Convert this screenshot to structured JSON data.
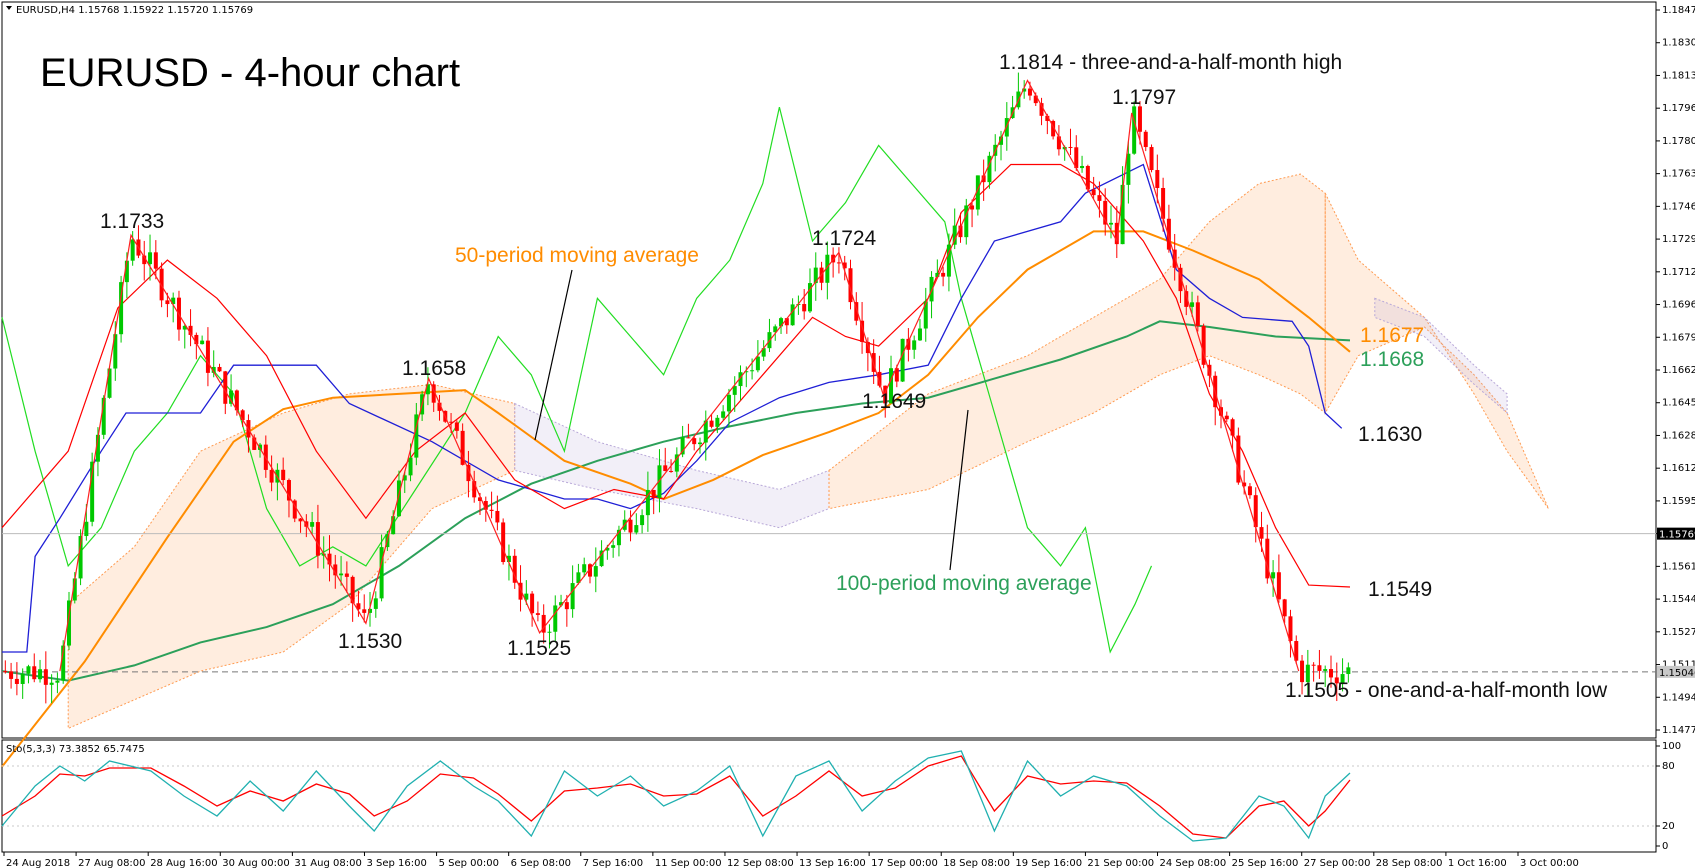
{
  "symbol_header": "EURUSD,H4  1.15768 1.15922 1.15720 1.15769",
  "title": "EURUSD - 4-hour chart",
  "osc_header": "Sto(5,3,3) 73.3852 65.7475",
  "current_price_label": "1.15769",
  "dashed_level_label": "1.15046",
  "chart_data": {
    "type": "candlestick",
    "price_axis": {
      "ylim": [
        1.147,
        1.1855
      ],
      "ticks": [
        "1.18470",
        "1.18305",
        "1.18135",
        "1.17965",
        "1.17800",
        "1.17630",
        "1.17465",
        "1.17295",
        "1.17125",
        "1.16960",
        "1.16790",
        "1.16620",
        "1.16455",
        "1.16285",
        "1.16120",
        "1.15950",
        "1.15780",
        "1.15610",
        "1.15445",
        "1.15275",
        "1.15110",
        "1.14940",
        "1.14775"
      ],
      "current_price": 1.15769,
      "dashed_level": 1.15046
    },
    "x_ticks": [
      "24 Aug 2018",
      "27 Aug 08:00",
      "28 Aug 16:00",
      "30 Aug 00:00",
      "31 Aug 08:00",
      "3 Sep 16:00",
      "5 Sep 00:00",
      "6 Sep 08:00",
      "7 Sep 16:00",
      "11 Sep 00:00",
      "12 Sep 08:00",
      "13 Sep 16:00",
      "17 Sep 00:00",
      "18 Sep 08:00",
      "19 Sep 16:00",
      "21 Sep 00:00",
      "24 Sep 08:00",
      "25 Sep 16:00",
      "27 Sep 00:00",
      "28 Sep 08:00",
      "1 Oct 16:00",
      "3 Oct 00:00"
    ],
    "osc_ticks": [
      "100",
      "80",
      "20",
      "0"
    ],
    "colors": {
      "up": "#00c800",
      "down": "#ff0000",
      "ma50": "#ff8c00",
      "ma100": "#2ca05a",
      "kijun": "#1f1fd6",
      "tenkan": "#ff0000",
      "chikou": "#22dd22",
      "cloud_orange": "#ff9a50",
      "cloud_purple": "#b8a8d8",
      "stoch_main": "#20b0b0",
      "stoch_signal": "#ff0000",
      "label_orange": "#ff8c00",
      "label_green": "#2ca05a"
    },
    "annotations": {
      "h1": "1.1733",
      "h2": "1.1658",
      "h3": "1.1724",
      "h4": "1.1814 - three-and-a-half-month high",
      "h5": "1.1797",
      "l1": "1.1530",
      "l2": "1.1525",
      "l3": "1.1649",
      "l4": "1.1505 - one-and-a-half-month low",
      "ma50_text": "50-period moving average",
      "ma100_text": "100-period moving average",
      "ma50_val": "1.1677",
      "ma100_val": "1.1668",
      "kijun_val": "1.1630",
      "last_val": "1.1549"
    },
    "zigzag": [
      {
        "x": 0.035,
        "y": 1.1505
      },
      {
        "x": 0.078,
        "y": 1.1733
      },
      {
        "x": 0.22,
        "y": 1.153
      },
      {
        "x": 0.258,
        "y": 1.1658
      },
      {
        "x": 0.325,
        "y": 1.1525
      },
      {
        "x": 0.506,
        "y": 1.1724
      },
      {
        "x": 0.533,
        "y": 1.1649
      },
      {
        "x": 0.62,
        "y": 1.1814
      },
      {
        "x": 0.674,
        "y": 1.173
      },
      {
        "x": 0.683,
        "y": 1.1797
      },
      {
        "x": 0.784,
        "y": 1.1505
      }
    ],
    "ma50": [
      [
        0,
        1.1455
      ],
      [
        0.05,
        1.151
      ],
      [
        0.1,
        1.1575
      ],
      [
        0.14,
        1.1625
      ],
      [
        0.17,
        1.1642
      ],
      [
        0.2,
        1.1648
      ],
      [
        0.24,
        1.165
      ],
      [
        0.28,
        1.1652
      ],
      [
        0.3,
        1.164
      ],
      [
        0.34,
        1.1615
      ],
      [
        0.38,
        1.1603
      ],
      [
        0.4,
        1.1595
      ],
      [
        0.43,
        1.1605
      ],
      [
        0.46,
        1.1618
      ],
      [
        0.5,
        1.163
      ],
      [
        0.53,
        1.164
      ],
      [
        0.56,
        1.166
      ],
      [
        0.59,
        1.169
      ],
      [
        0.62,
        1.1715
      ],
      [
        0.66,
        1.1735
      ],
      [
        0.69,
        1.1735
      ],
      [
        0.72,
        1.1725
      ],
      [
        0.76,
        1.171
      ],
      [
        0.79,
        1.169
      ],
      [
        0.815,
        1.1672
      ]
    ],
    "ma100": [
      [
        0,
        1.1505
      ],
      [
        0.04,
        1.15
      ],
      [
        0.08,
        1.1508
      ],
      [
        0.12,
        1.152
      ],
      [
        0.16,
        1.1528
      ],
      [
        0.2,
        1.154
      ],
      [
        0.24,
        1.156
      ],
      [
        0.28,
        1.1585
      ],
      [
        0.32,
        1.1603
      ],
      [
        0.36,
        1.1615
      ],
      [
        0.4,
        1.1625
      ],
      [
        0.44,
        1.1633
      ],
      [
        0.48,
        1.164
      ],
      [
        0.52,
        1.1645
      ],
      [
        0.56,
        1.1648
      ],
      [
        0.6,
        1.1658
      ],
      [
        0.64,
        1.1668
      ],
      [
        0.68,
        1.168
      ],
      [
        0.7,
        1.1688
      ],
      [
        0.73,
        1.1685
      ],
      [
        0.77,
        1.168
      ],
      [
        0.815,
        1.1678
      ]
    ],
    "kijun": [
      [
        0,
        1.1515
      ],
      [
        0.015,
        1.1515
      ],
      [
        0.02,
        1.1565
      ],
      [
        0.035,
        1.1585
      ],
      [
        0.06,
        1.162
      ],
      [
        0.075,
        1.164
      ],
      [
        0.12,
        1.164
      ],
      [
        0.14,
        1.1665
      ],
      [
        0.19,
        1.1665
      ],
      [
        0.21,
        1.1645
      ],
      [
        0.26,
        1.1625
      ],
      [
        0.3,
        1.1605
      ],
      [
        0.34,
        1.1595
      ],
      [
        0.36,
        1.1595
      ],
      [
        0.38,
        1.159
      ],
      [
        0.4,
        1.1598
      ],
      [
        0.42,
        1.1615
      ],
      [
        0.44,
        1.1635
      ],
      [
        0.47,
        1.1648
      ],
      [
        0.5,
        1.1656
      ],
      [
        0.53,
        1.166
      ],
      [
        0.56,
        1.1665
      ],
      [
        0.58,
        1.17
      ],
      [
        0.6,
        1.173
      ],
      [
        0.64,
        1.174
      ],
      [
        0.655,
        1.1755
      ],
      [
        0.69,
        1.177
      ],
      [
        0.71,
        1.1715
      ],
      [
        0.73,
        1.17
      ],
      [
        0.75,
        1.169
      ],
      [
        0.78,
        1.1688
      ],
      [
        0.79,
        1.1675
      ],
      [
        0.8,
        1.164
      ],
      [
        0.81,
        1.1632
      ]
    ],
    "tenkan": [
      [
        0,
        1.158
      ],
      [
        0.04,
        1.162
      ],
      [
        0.07,
        1.1695
      ],
      [
        0.1,
        1.172
      ],
      [
        0.13,
        1.17
      ],
      [
        0.16,
        1.167
      ],
      [
        0.19,
        1.162
      ],
      [
        0.22,
        1.1585
      ],
      [
        0.25,
        1.162
      ],
      [
        0.28,
        1.164
      ],
      [
        0.31,
        1.1605
      ],
      [
        0.34,
        1.159
      ],
      [
        0.37,
        1.16
      ],
      [
        0.4,
        1.1595
      ],
      [
        0.42,
        1.162
      ],
      [
        0.44,
        1.164
      ],
      [
        0.46,
        1.166
      ],
      [
        0.49,
        1.169
      ],
      [
        0.51,
        1.168
      ],
      [
        0.53,
        1.1675
      ],
      [
        0.56,
        1.17
      ],
      [
        0.58,
        1.1745
      ],
      [
        0.61,
        1.177
      ],
      [
        0.64,
        1.177
      ],
      [
        0.66,
        1.176
      ],
      [
        0.69,
        1.173
      ],
      [
        0.71,
        1.17
      ],
      [
        0.73,
        1.165
      ],
      [
        0.75,
        1.162
      ],
      [
        0.77,
        1.158
      ],
      [
        0.79,
        1.155
      ],
      [
        0.815,
        1.1549
      ]
    ],
    "chikou": [
      [
        0,
        1.169
      ],
      [
        0.02,
        1.162
      ],
      [
        0.04,
        1.156
      ],
      [
        0.06,
        1.158
      ],
      [
        0.08,
        1.162
      ],
      [
        0.1,
        1.164
      ],
      [
        0.12,
        1.167
      ],
      [
        0.14,
        1.165
      ],
      [
        0.16,
        1.159
      ],
      [
        0.18,
        1.156
      ],
      [
        0.2,
        1.157
      ],
      [
        0.22,
        1.156
      ],
      [
        0.25,
        1.16
      ],
      [
        0.28,
        1.164
      ],
      [
        0.3,
        1.168
      ],
      [
        0.32,
        1.166
      ],
      [
        0.34,
        1.162
      ],
      [
        0.36,
        1.17
      ],
      [
        0.38,
        1.168
      ],
      [
        0.4,
        1.166
      ],
      [
        0.42,
        1.17
      ],
      [
        0.44,
        1.172
      ],
      [
        0.46,
        1.176
      ],
      [
        0.47,
        1.18
      ],
      [
        0.49,
        1.173
      ],
      [
        0.51,
        1.175
      ],
      [
        0.53,
        1.178
      ],
      [
        0.55,
        1.176
      ],
      [
        0.57,
        1.174
      ],
      [
        0.58,
        1.17
      ],
      [
        0.6,
        1.164
      ],
      [
        0.62,
        1.158
      ],
      [
        0.64,
        1.156
      ],
      [
        0.655,
        1.158
      ],
      [
        0.67,
        1.1515
      ],
      [
        0.685,
        1.154
      ],
      [
        0.695,
        1.156
      ]
    ],
    "cloud": [
      {
        "color": "orange",
        "top": [
          [
            0.04,
            1.154
          ],
          [
            0.08,
            1.157
          ],
          [
            0.12,
            1.162
          ],
          [
            0.17,
            1.164
          ],
          [
            0.21,
            1.165
          ],
          [
            0.26,
            1.1655
          ],
          [
            0.31,
            1.1645
          ]
        ],
        "bottom": [
          [
            0.04,
            1.1475
          ],
          [
            0.08,
            1.149
          ],
          [
            0.12,
            1.1505
          ],
          [
            0.17,
            1.1515
          ],
          [
            0.21,
            1.154
          ],
          [
            0.26,
            1.159
          ],
          [
            0.31,
            1.161
          ]
        ]
      },
      {
        "color": "purple",
        "top": [
          [
            0.31,
            1.1645
          ],
          [
            0.36,
            1.1625
          ],
          [
            0.42,
            1.161
          ],
          [
            0.47,
            1.16
          ],
          [
            0.5,
            1.161
          ]
        ],
        "bottom": [
          [
            0.31,
            1.161
          ],
          [
            0.36,
            1.16
          ],
          [
            0.42,
            1.159
          ],
          [
            0.47,
            1.158
          ],
          [
            0.5,
            1.159
          ]
        ]
      },
      {
        "color": "orange",
        "top": [
          [
            0.5,
            1.161
          ],
          [
            0.56,
            1.165
          ],
          [
            0.62,
            1.167
          ],
          [
            0.66,
            1.169
          ],
          [
            0.7,
            1.171
          ],
          [
            0.73,
            1.174
          ],
          [
            0.76,
            1.176
          ],
          [
            0.785,
            1.1765
          ],
          [
            0.8,
            1.1755
          ]
        ],
        "bottom": [
          [
            0.5,
            1.159
          ],
          [
            0.56,
            1.16
          ],
          [
            0.62,
            1.1625
          ],
          [
            0.66,
            1.164
          ],
          [
            0.7,
            1.166
          ],
          [
            0.73,
            1.167
          ],
          [
            0.76,
            1.166
          ],
          [
            0.785,
            1.165
          ],
          [
            0.8,
            1.164
          ]
        ]
      },
      {
        "color": "orange",
        "top": [
          [
            0.8,
            1.1755
          ],
          [
            0.82,
            1.172
          ],
          [
            0.86,
            1.169
          ],
          [
            0.89,
            1.165
          ],
          [
            0.91,
            1.162
          ],
          [
            0.935,
            1.159
          ]
        ],
        "bottom": [
          [
            0.8,
            1.164
          ],
          [
            0.82,
            1.167
          ],
          [
            0.86,
            1.1685
          ],
          [
            0.89,
            1.166
          ],
          [
            0.91,
            1.164
          ],
          [
            0.935,
            1.159
          ]
        ]
      },
      {
        "color": "purple",
        "top": [
          [
            0.83,
            1.17
          ],
          [
            0.86,
            1.169
          ],
          [
            0.89,
            1.1665
          ],
          [
            0.91,
            1.165
          ]
        ],
        "bottom": [
          [
            0.83,
            1.169
          ],
          [
            0.86,
            1.168
          ],
          [
            0.89,
            1.1655
          ],
          [
            0.91,
            1.164
          ]
        ]
      }
    ],
    "stoch_main": [
      [
        0,
        20
      ],
      [
        0.02,
        60
      ],
      [
        0.035,
        80
      ],
      [
        0.05,
        65
      ],
      [
        0.065,
        85
      ],
      [
        0.09,
        75
      ],
      [
        0.11,
        50
      ],
      [
        0.13,
        30
      ],
      [
        0.15,
        65
      ],
      [
        0.17,
        35
      ],
      [
        0.19,
        75
      ],
      [
        0.21,
        40
      ],
      [
        0.225,
        15
      ],
      [
        0.245,
        60
      ],
      [
        0.265,
        85
      ],
      [
        0.285,
        60
      ],
      [
        0.3,
        45
      ],
      [
        0.32,
        10
      ],
      [
        0.34,
        75
      ],
      [
        0.36,
        50
      ],
      [
        0.38,
        70
      ],
      [
        0.4,
        40
      ],
      [
        0.42,
        55
      ],
      [
        0.44,
        80
      ],
      [
        0.46,
        10
      ],
      [
        0.48,
        70
      ],
      [
        0.5,
        85
      ],
      [
        0.52,
        35
      ],
      [
        0.54,
        65
      ],
      [
        0.56,
        88
      ],
      [
        0.58,
        95
      ],
      [
        0.6,
        15
      ],
      [
        0.62,
        85
      ],
      [
        0.64,
        50
      ],
      [
        0.66,
        70
      ],
      [
        0.68,
        60
      ],
      [
        0.7,
        30
      ],
      [
        0.72,
        5
      ],
      [
        0.74,
        8
      ],
      [
        0.76,
        50
      ],
      [
        0.775,
        40
      ],
      [
        0.79,
        8
      ],
      [
        0.8,
        50
      ],
      [
        0.815,
        73
      ]
    ],
    "stoch_signal": [
      [
        0,
        30
      ],
      [
        0.02,
        50
      ],
      [
        0.035,
        72
      ],
      [
        0.05,
        70
      ],
      [
        0.065,
        78
      ],
      [
        0.09,
        78
      ],
      [
        0.11,
        60
      ],
      [
        0.13,
        40
      ],
      [
        0.15,
        55
      ],
      [
        0.17,
        45
      ],
      [
        0.19,
        62
      ],
      [
        0.21,
        52
      ],
      [
        0.225,
        30
      ],
      [
        0.245,
        45
      ],
      [
        0.265,
        72
      ],
      [
        0.285,
        68
      ],
      [
        0.3,
        52
      ],
      [
        0.32,
        25
      ],
      [
        0.34,
        55
      ],
      [
        0.36,
        58
      ],
      [
        0.38,
        62
      ],
      [
        0.4,
        50
      ],
      [
        0.42,
        52
      ],
      [
        0.44,
        70
      ],
      [
        0.46,
        30
      ],
      [
        0.48,
        50
      ],
      [
        0.5,
        75
      ],
      [
        0.52,
        50
      ],
      [
        0.54,
        58
      ],
      [
        0.56,
        80
      ],
      [
        0.58,
        90
      ],
      [
        0.6,
        35
      ],
      [
        0.62,
        70
      ],
      [
        0.64,
        62
      ],
      [
        0.66,
        65
      ],
      [
        0.68,
        63
      ],
      [
        0.7,
        40
      ],
      [
        0.72,
        12
      ],
      [
        0.74,
        8
      ],
      [
        0.76,
        40
      ],
      [
        0.775,
        45
      ],
      [
        0.79,
        20
      ],
      [
        0.8,
        35
      ],
      [
        0.815,
        66
      ]
    ]
  }
}
